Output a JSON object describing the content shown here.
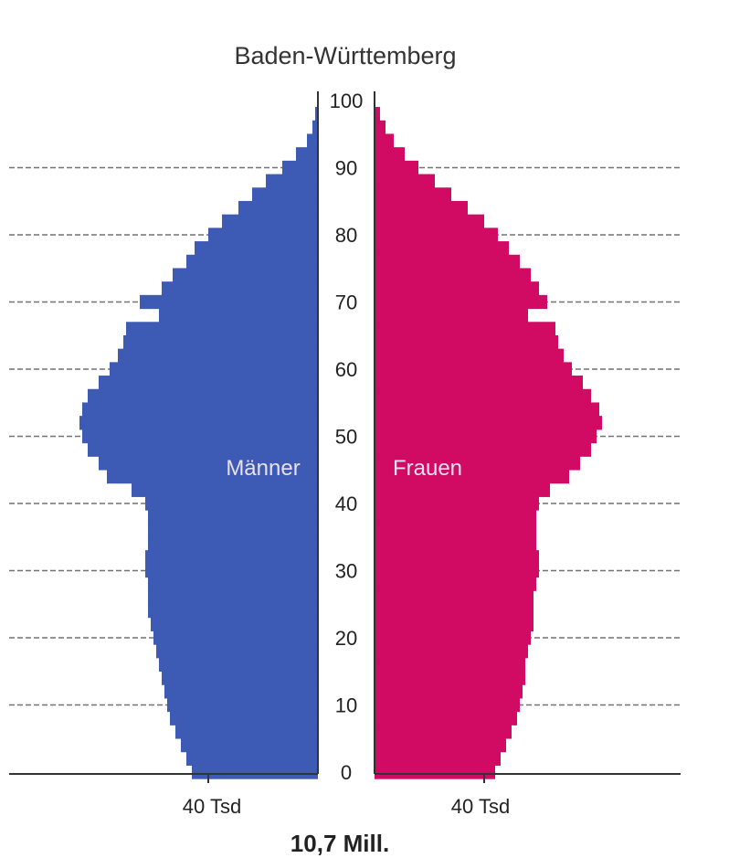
{
  "chart_data": {
    "type": "bar",
    "subtype": "population-pyramid",
    "title": "Baden-Württemberg",
    "total_label": "10,7 Mill.",
    "y_ticks": [
      "0",
      "10",
      "20",
      "30",
      "40",
      "50",
      "60",
      "70",
      "80",
      "90",
      "100"
    ],
    "x_tick_labels": {
      "left": "40 Tsd",
      "right": "40 Tsd"
    },
    "xlim": [
      0,
      90
    ],
    "ylim": [
      0,
      100
    ],
    "grid": false,
    "colors": {
      "male": "#3d5bb5",
      "female": "#d10a63",
      "axis": "#333333",
      "ref": "#444444"
    },
    "age": [
      0,
      2,
      4,
      6,
      8,
      10,
      12,
      14,
      16,
      18,
      20,
      22,
      24,
      26,
      28,
      30,
      32,
      34,
      36,
      38,
      40,
      42,
      44,
      46,
      48,
      50,
      52,
      54,
      56,
      58,
      60,
      62,
      64,
      66,
      68,
      70,
      72,
      74,
      76,
      78,
      80,
      82,
      84,
      86,
      88,
      90,
      92,
      94,
      96,
      98,
      100
    ],
    "series": [
      {
        "name": "Männer",
        "values": [
          46,
          48,
          50,
          52,
          54,
          55,
          56,
          57,
          58,
          59,
          60,
          61,
          62,
          62,
          62,
          63,
          63,
          62,
          62,
          62,
          63,
          68,
          77,
          80,
          84,
          86,
          87,
          86,
          84,
          80,
          76,
          73,
          71,
          70,
          58,
          65,
          57,
          53,
          48,
          45,
          40,
          35,
          29,
          24,
          19,
          13,
          8,
          4,
          2,
          1,
          0
        ]
      },
      {
        "name": "Frauen",
        "values": [
          44,
          46,
          48,
          50,
          52,
          53,
          54,
          55,
          55,
          56,
          57,
          58,
          58,
          58,
          59,
          60,
          60,
          59,
          59,
          59,
          60,
          64,
          71,
          75,
          79,
          81,
          83,
          82,
          79,
          76,
          72,
          69,
          67,
          66,
          56,
          63,
          60,
          57,
          53,
          49,
          45,
          40,
          34,
          28,
          22,
          16,
          11,
          7,
          4,
          2,
          0
        ]
      }
    ]
  }
}
